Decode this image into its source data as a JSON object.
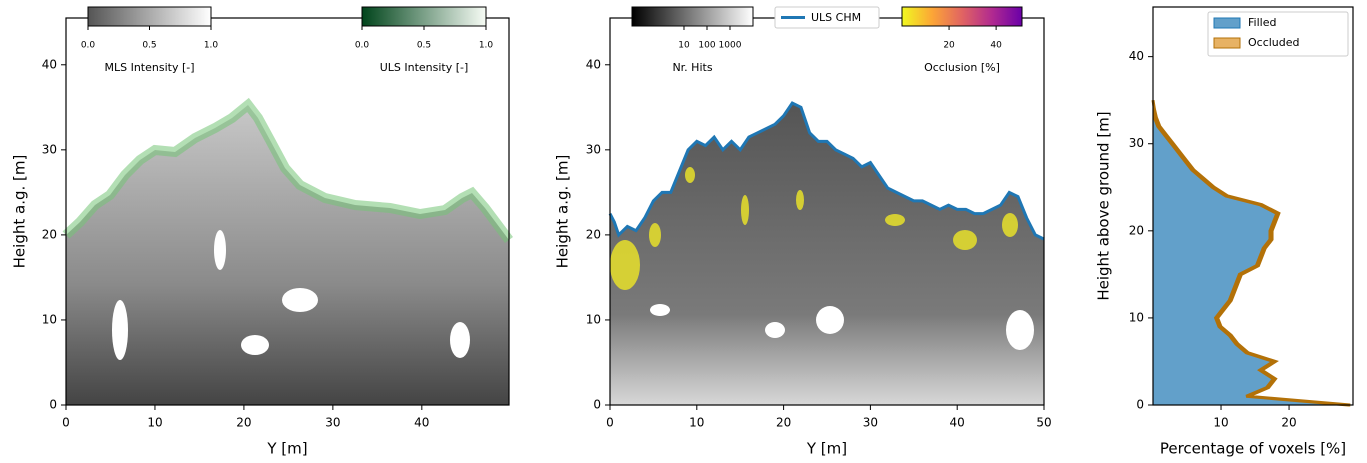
{
  "chart_data": [
    {
      "type": "image",
      "xlabel": "Y [m]",
      "ylabel": "Height a.g. [m]",
      "xlim": [
        0,
        49.8
      ],
      "ylim": [
        0,
        45.5
      ],
      "xticks": [
        0,
        10,
        20,
        30,
        40
      ],
      "yticks": [
        0,
        10,
        20,
        30,
        40
      ],
      "colorbars": [
        {
          "label": "MLS Intensity [-]",
          "lim": [
            0,
            1
          ],
          "ticks": [
            {
              "value": 0,
              "label": "0.0"
            },
            {
              "value": 0.5,
              "label": "0.5"
            },
            {
              "value": 1,
              "label": "1.0"
            }
          ],
          "colors": [
            "#555555",
            "#ffffff"
          ]
        },
        {
          "label": "ULS Intensity [-]",
          "lim": [
            0,
            1
          ],
          "ticks": [
            {
              "value": 0,
              "label": "0.0"
            },
            {
              "value": 0.5,
              "label": "0.5"
            },
            {
              "value": 1,
              "label": "1.0"
            }
          ],
          "colors": [
            "#00441b",
            "#f7fcf5"
          ]
        }
      ]
    },
    {
      "type": "line",
      "xlabel": "Y [m]",
      "ylabel": "Height a.g. [m]",
      "xlim": [
        0,
        50
      ],
      "ylim": [
        0,
        45.5
      ],
      "xticks": [
        0,
        10,
        20,
        30,
        40,
        50
      ],
      "yticks": [
        0,
        10,
        20,
        30,
        40
      ],
      "legend": "upper center",
      "series": [
        {
          "name": "ULS CHM",
          "color": "#1f77b4",
          "x": [
            0,
            0.5,
            1,
            2,
            3,
            4,
            5,
            6,
            7,
            8,
            9,
            10,
            11,
            12,
            13,
            14,
            15,
            16,
            17,
            18,
            19,
            20,
            21,
            22,
            23,
            24,
            25,
            26,
            27,
            28,
            29,
            30,
            31,
            32,
            33,
            34,
            35,
            36,
            37,
            38,
            39,
            40,
            41,
            42,
            43,
            44,
            45,
            46,
            47,
            48,
            49,
            50
          ],
          "values": [
            22.5,
            21.5,
            20,
            21,
            20.5,
            22,
            24,
            25,
            25,
            27.5,
            30,
            31,
            30.5,
            31.5,
            30,
            31,
            30,
            31.5,
            32,
            32.5,
            33,
            34,
            35.5,
            35,
            32,
            31,
            31,
            30,
            29.5,
            29,
            28,
            28.5,
            27,
            25.5,
            25,
            24.5,
            24,
            24,
            23.5,
            23,
            23.5,
            23,
            23,
            22.5,
            22.5,
            23,
            23.5,
            25,
            24.5,
            22,
            20,
            19.5
          ]
        }
      ],
      "colorbars": [
        {
          "label": "Nr. Hits",
          "log": true,
          "lim": [
            0.055,
            10000
          ],
          "ticks": [
            10,
            100,
            1000
          ],
          "colors": [
            "#000000",
            "#ffffff"
          ]
        },
        {
          "label": "Occlusion [%]",
          "lim": [
            0,
            51
          ],
          "ticks": [
            20,
            40
          ],
          "colors": [
            "#f0f921",
            "#fca636",
            "#e16462",
            "#b12a90",
            "#6a00a8"
          ]
        }
      ]
    },
    {
      "type": "area",
      "orientation": "horizontal",
      "stacked": true,
      "legend": "upper right",
      "xlabel": "Percentage of voxels [%]",
      "ylabel": "Height above ground [m]",
      "xlim": [
        0,
        29.4
      ],
      "ylim": [
        0,
        45.7
      ],
      "xticks": [
        10,
        20
      ],
      "yticks": [
        0,
        10,
        20,
        30,
        40
      ],
      "y": [
        0,
        1,
        2,
        3,
        4,
        5,
        6,
        7,
        8,
        9,
        10,
        11,
        12,
        13,
        14,
        15,
        16,
        17,
        18,
        19,
        20,
        21,
        22,
        23,
        24,
        25,
        26,
        27,
        28,
        29,
        30,
        31,
        32,
        33,
        34,
        35
      ],
      "series": [
        {
          "name": "Filled",
          "color": "#1f77b4",
          "values": [
            28.7,
            13.7,
            16.7,
            17.7,
            15.7,
            17.7,
            13.7,
            12.2,
            11.2,
            9.7,
            9.2,
            10.2,
            11.2,
            11.7,
            12.2,
            12.7,
            15.2,
            15.7,
            16.2,
            17.2,
            17.2,
            17.7,
            18.2,
            15.7,
            10.7,
            8.7,
            7.2,
            5.7,
            4.7,
            3.7,
            2.7,
            1.7,
            0.7,
            0.2,
            0.2,
            0
          ]
        },
        {
          "name": "Occluded",
          "color": "#dd9222",
          "values": [
            0.3,
            0.3,
            0.3,
            0.3,
            0.3,
            0.3,
            0.3,
            0.3,
            0.3,
            0.3,
            0.3,
            0.3,
            0.3,
            0.3,
            0.3,
            0.3,
            0.3,
            0.3,
            0.3,
            0.3,
            0.3,
            0.3,
            0.3,
            0.3,
            0.3,
            0.3,
            0.3,
            0.3,
            0.3,
            0.3,
            0.3,
            0.3,
            0.3,
            0.3,
            0,
            0
          ]
        }
      ]
    }
  ]
}
